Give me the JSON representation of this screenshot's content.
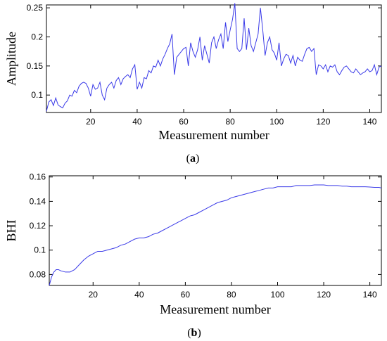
{
  "chart_data": [
    {
      "type": "line",
      "caption_letter": "a",
      "xlabel": "Measurement number",
      "ylabel": "Amplitude",
      "xlim": [
        1,
        145
      ],
      "ylim": [
        0.07,
        0.255
      ],
      "xticks": [
        20,
        40,
        60,
        80,
        100,
        120,
        140
      ],
      "yticks": [
        0.1,
        0.15,
        0.2,
        0.25
      ],
      "ytick_labels": [
        "0.1",
        "0.15",
        "0.2",
        "0.25"
      ],
      "series": [
        {
          "color": "#3a3ae8",
          "x": [
            1,
            2,
            3,
            4,
            5,
            6,
            7,
            8,
            9,
            10,
            11,
            12,
            13,
            14,
            15,
            16,
            17,
            18,
            19,
            20,
            21,
            22,
            23,
            24,
            25,
            26,
            27,
            28,
            29,
            30,
            31,
            32,
            33,
            34,
            35,
            36,
            37,
            38,
            39,
            40,
            41,
            42,
            43,
            44,
            45,
            46,
            47,
            48,
            49,
            50,
            51,
            52,
            53,
            54,
            55,
            56,
            57,
            58,
            59,
            60,
            61,
            62,
            63,
            64,
            65,
            66,
            67,
            68,
            69,
            70,
            71,
            72,
            73,
            74,
            75,
            76,
            77,
            78,
            79,
            80,
            81,
            82,
            83,
            84,
            85,
            86,
            87,
            88,
            89,
            90,
            91,
            92,
            93,
            94,
            95,
            96,
            97,
            98,
            99,
            100,
            101,
            102,
            103,
            104,
            105,
            106,
            107,
            108,
            109,
            110,
            111,
            112,
            113,
            114,
            115,
            116,
            117,
            118,
            119,
            120,
            121,
            122,
            123,
            124,
            125,
            126,
            127,
            128,
            129,
            130,
            131,
            132,
            133,
            134,
            135,
            136,
            137,
            138,
            139,
            140,
            141,
            142,
            143,
            144,
            145
          ],
          "y": [
            0.072,
            0.088,
            0.092,
            0.082,
            0.095,
            0.083,
            0.08,
            0.078,
            0.086,
            0.09,
            0.1,
            0.098,
            0.108,
            0.104,
            0.115,
            0.12,
            0.122,
            0.12,
            0.112,
            0.098,
            0.118,
            0.11,
            0.112,
            0.122,
            0.1,
            0.092,
            0.112,
            0.118,
            0.122,
            0.112,
            0.125,
            0.13,
            0.118,
            0.128,
            0.132,
            0.135,
            0.13,
            0.145,
            0.152,
            0.11,
            0.122,
            0.112,
            0.13,
            0.128,
            0.142,
            0.138,
            0.15,
            0.148,
            0.16,
            0.15,
            0.162,
            0.17,
            0.18,
            0.188,
            0.205,
            0.135,
            0.165,
            0.17,
            0.175,
            0.18,
            0.182,
            0.15,
            0.19,
            0.175,
            0.165,
            0.178,
            0.2,
            0.16,
            0.185,
            0.17,
            0.155,
            0.19,
            0.2,
            0.18,
            0.195,
            0.205,
            0.18,
            0.225,
            0.192,
            0.212,
            0.23,
            0.258,
            0.18,
            0.175,
            0.18,
            0.232,
            0.178,
            0.215,
            0.185,
            0.175,
            0.19,
            0.205,
            0.25,
            0.212,
            0.168,
            0.19,
            0.2,
            0.178,
            0.172,
            0.16,
            0.19,
            0.15,
            0.162,
            0.17,
            0.168,
            0.155,
            0.168,
            0.15,
            0.165,
            0.16,
            0.158,
            0.17,
            0.18,
            0.182,
            0.175,
            0.18,
            0.135,
            0.152,
            0.15,
            0.145,
            0.152,
            0.14,
            0.15,
            0.148,
            0.152,
            0.14,
            0.135,
            0.142,
            0.148,
            0.15,
            0.145,
            0.14,
            0.138,
            0.145,
            0.14,
            0.135,
            0.138,
            0.14,
            0.145,
            0.14,
            0.142,
            0.152,
            0.135,
            0.148,
            0.15
          ]
        }
      ]
    },
    {
      "type": "line",
      "caption_letter": "b",
      "xlabel": "Measurement number",
      "ylabel": "BHI",
      "xlim": [
        1,
        145
      ],
      "ylim": [
        0.071,
        0.161
      ],
      "xticks": [
        20,
        40,
        60,
        80,
        100,
        120,
        140
      ],
      "yticks": [
        0.08,
        0.1,
        0.12,
        0.14,
        0.16
      ],
      "ytick_labels": [
        "0.08",
        "0.1",
        "0.12",
        "0.14",
        "0.16"
      ],
      "series": [
        {
          "color": "#3a3ae8",
          "x": [
            1,
            2,
            3,
            4,
            5,
            6,
            8,
            10,
            12,
            14,
            16,
            18,
            20,
            22,
            24,
            26,
            28,
            30,
            32,
            34,
            36,
            38,
            40,
            42,
            44,
            46,
            48,
            50,
            52,
            54,
            56,
            58,
            60,
            62,
            64,
            66,
            68,
            70,
            72,
            74,
            76,
            78,
            80,
            82,
            84,
            86,
            88,
            90,
            92,
            94,
            96,
            98,
            100,
            102,
            104,
            106,
            108,
            110,
            112,
            114,
            116,
            118,
            120,
            122,
            124,
            126,
            128,
            130,
            132,
            134,
            136,
            138,
            140,
            142,
            144,
            145
          ],
          "y": [
            0.071,
            0.078,
            0.082,
            0.084,
            0.084,
            0.083,
            0.082,
            0.082,
            0.084,
            0.088,
            0.092,
            0.095,
            0.097,
            0.099,
            0.099,
            0.1,
            0.101,
            0.102,
            0.104,
            0.105,
            0.107,
            0.109,
            0.11,
            0.11,
            0.111,
            0.113,
            0.114,
            0.116,
            0.118,
            0.12,
            0.122,
            0.124,
            0.126,
            0.128,
            0.129,
            0.131,
            0.133,
            0.135,
            0.137,
            0.139,
            0.14,
            0.141,
            0.143,
            0.144,
            0.145,
            0.146,
            0.147,
            0.148,
            0.149,
            0.15,
            0.151,
            0.151,
            0.152,
            0.152,
            0.152,
            0.152,
            0.153,
            0.153,
            0.153,
            0.153,
            0.1535,
            0.1535,
            0.1535,
            0.153,
            0.153,
            0.153,
            0.1525,
            0.1525,
            0.152,
            0.152,
            0.152,
            0.152,
            0.1518,
            0.1515,
            0.1515,
            0.151
          ]
        }
      ]
    }
  ]
}
